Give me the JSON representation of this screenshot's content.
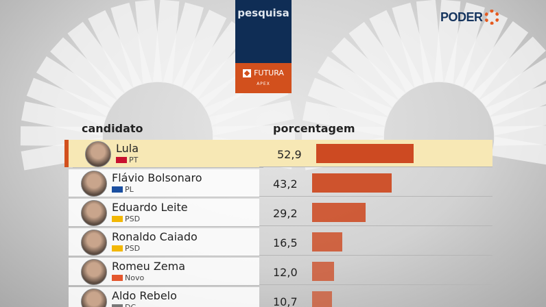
{
  "brand": {
    "title": "pesquisa",
    "sponsor": "FUTURA",
    "sponsor_sub": "APEX",
    "outlet": "PODER",
    "outlet_sub": "360"
  },
  "colors": {
    "bar": "#cd4a22",
    "highlight": "#f7e8b5",
    "navy": "#0f2d55",
    "orange": "#d2501d"
  },
  "chart_data": {
    "type": "bar",
    "column_headers": [
      "candidato",
      "porcentagem"
    ],
    "categories": [
      "Lula",
      "Flávio Bolsonaro",
      "Eduardo Leite",
      "Ronaldo Caiado",
      "Romeu Zema",
      "Aldo Rebelo"
    ],
    "parties": [
      "PT",
      "PL",
      "PSD",
      "PSD",
      "Novo",
      "DC"
    ],
    "values": [
      52.9,
      43.2,
      29.2,
      16.5,
      12.0,
      10.7
    ],
    "value_labels": [
      "52,9",
      "43,2",
      "29,2",
      "16,5",
      "12,0",
      "10,7"
    ],
    "highlighted": "Lula"
  }
}
